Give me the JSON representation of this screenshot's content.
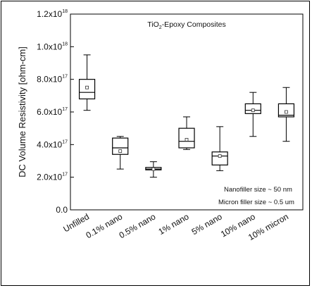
{
  "chart_data": {
    "type": "box",
    "title": "TiO2-Epoxy Composites",
    "ylabel": "DC Volume Resistivity [ohm-cm]",
    "xlabel": "",
    "ylim": [
      0,
      1.2e+18
    ],
    "yticks": [
      {
        "value": 0,
        "base": "0.0",
        "exp": ""
      },
      {
        "value": 2e+17,
        "base": "2.0x10",
        "exp": "17"
      },
      {
        "value": 4e+17,
        "base": "4.0x10",
        "exp": "17"
      },
      {
        "value": 6e+17,
        "base": "6.0x10",
        "exp": "17"
      },
      {
        "value": 8e+17,
        "base": "8.0x10",
        "exp": "17"
      },
      {
        "value": 1e+18,
        "base": "1.0x10",
        "exp": "18"
      },
      {
        "value": 1.2e+18,
        "base": "1.2x10",
        "exp": "18"
      }
    ],
    "categories": [
      "Unfilled",
      "0.1% nano",
      "0.5% nano",
      "1% nano",
      "5% nano",
      "10% nano",
      "10% micron"
    ],
    "boxes": [
      {
        "min": 6.1e+17,
        "q1": 6.8e+17,
        "median": 7.2e+17,
        "q3": 8e+17,
        "max": 9.5e+17,
        "mean": 7.5e+17
      },
      {
        "min": 2.5e+17,
        "q1": 3.4e+17,
        "median": 3.8e+17,
        "q3": 4.4e+17,
        "max": 4.5e+17,
        "mean": 3.6e+17
      },
      {
        "min": 2e+17,
        "q1": 2.45e+17,
        "median": 2.5e+17,
        "q3": 2.6e+17,
        "max": 2.95e+17,
        "mean": 2.5e+17
      },
      {
        "min": 3.7e+17,
        "q1": 3.8e+17,
        "median": 4.2e+17,
        "q3": 5e+17,
        "max": 5.7e+17,
        "mean": 4.3e+17
      },
      {
        "min": 2.4e+17,
        "q1": 2.75e+17,
        "median": 3.3e+17,
        "q3": 3.55e+17,
        "max": 5.1e+17,
        "mean": 3.3e+17
      },
      {
        "min": 4.5e+17,
        "q1": 5.9e+17,
        "median": 6.1e+17,
        "q3": 6.5e+17,
        "max": 7.2e+17,
        "mean": 6.1e+17
      },
      {
        "min": 4.2e+17,
        "q1": 5.7e+17,
        "median": 5.8e+17,
        "q3": 6.5e+17,
        "max": 7.5e+17,
        "mean": 6e+17
      }
    ],
    "annotations": [
      "Nanofiller size ~ 50 nm",
      "Micron filler size ~ 0.5 um"
    ],
    "grid": false
  }
}
